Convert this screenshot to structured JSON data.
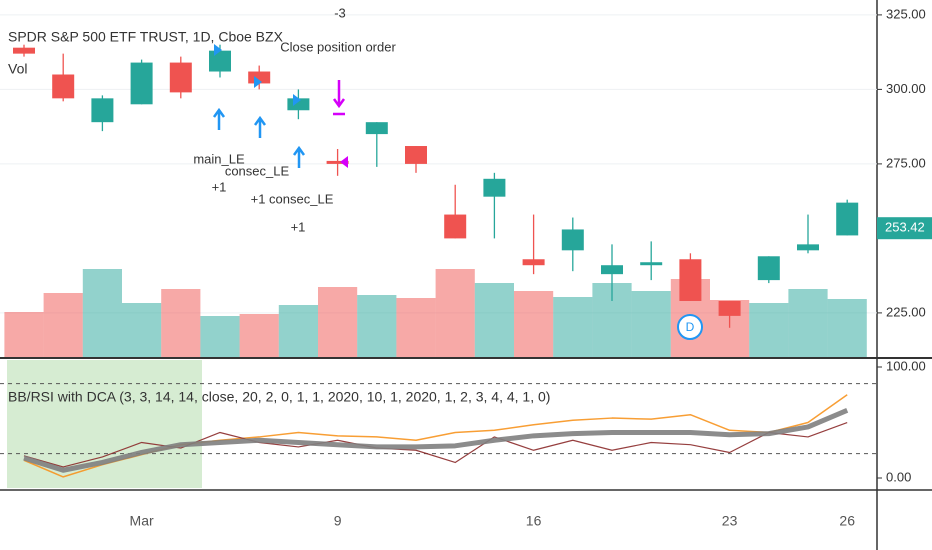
{
  "chart_data": [
    {
      "type": "candlestick",
      "title": "SPDR S&P 500 ETF TRUST, 1D, Cboe BZX",
      "subtitle": "Vol",
      "categories": [
        null,
        null,
        null,
        "Mar",
        null,
        null,
        null,
        null,
        "9",
        null,
        null,
        null,
        null,
        "16",
        null,
        null,
        null,
        null,
        "23",
        null,
        null,
        "26"
      ],
      "open": [
        314,
        305,
        289,
        295,
        309,
        306,
        306,
        293,
        276,
        285,
        281,
        258,
        264,
        243,
        246,
        238,
        241,
        243,
        229,
        236,
        246,
        251
      ],
      "high": [
        315,
        312,
        298,
        310,
        311,
        315,
        308,
        300,
        280,
        289,
        281,
        268,
        272,
        258,
        257,
        248,
        249,
        245,
        229,
        244,
        258,
        263
      ],
      "low": [
        311,
        296,
        286,
        295,
        297,
        304,
        300,
        290,
        271,
        274,
        272,
        250,
        250,
        238,
        239,
        229,
        236,
        229,
        220,
        235,
        245,
        251
      ],
      "close": [
        312,
        297,
        297,
        309,
        299,
        313,
        302,
        297,
        275,
        289,
        275,
        250,
        270,
        241,
        253,
        241,
        242,
        229,
        224,
        244,
        248,
        262
      ],
      "volume": [
        45,
        64,
        88,
        54,
        68,
        41,
        43,
        52,
        70,
        62,
        59,
        88,
        74,
        66,
        60,
        74,
        66,
        78,
        57,
        54,
        68,
        58
      ],
      "up_color": "#26a69a",
      "down_color": "#ef5350",
      "ylim": [
        210.2,
        330
      ],
      "yticks": [
        {
          "value": 225,
          "label": "225.00"
        },
        {
          "value": 275,
          "label": "275.00"
        },
        {
          "value": 300,
          "label": "300.00"
        },
        {
          "value": 325,
          "label": "325.00"
        }
      ],
      "last_price": 253.42,
      "grid": true,
      "annotations": [
        "-3",
        "Close position order",
        "main_LE",
        "+1",
        "consec_LE",
        "+1 consec_LE",
        "+1",
        "D"
      ]
    },
    {
      "type": "line",
      "title": "BB/RSI with DCA (3, 3, 14, 14, close, 20, 2, 0, 1, 1, 2020, 10, 1, 2020, 1, 2, 3, 4, 4, 1, 0)",
      "series": [
        {
          "color": "#f7931e",
          "width": 1.5,
          "values": [
            16,
            1,
            12,
            21,
            30,
            34,
            37,
            41,
            38,
            37,
            34,
            41,
            43,
            48,
            52,
            54,
            53,
            57,
            43,
            41,
            50,
            75
          ]
        },
        {
          "color": "#8b2a2a",
          "width": 1.2,
          "values": [
            20,
            10,
            19,
            32,
            27,
            41,
            32,
            28,
            34,
            27,
            25,
            14,
            37,
            25,
            34,
            25,
            32,
            30,
            23,
            41,
            37,
            50
          ]
        },
        {
          "color": "#808080",
          "width": 5,
          "values": [
            18,
            7,
            14,
            23,
            30,
            32,
            34,
            32,
            30,
            28,
            28,
            29,
            34,
            38,
            40,
            41,
            41,
            41,
            39,
            40,
            46,
            61
          ]
        }
      ],
      "ylim": [
        -10.8,
        106.3
      ],
      "yticks": [
        {
          "value": 0,
          "label": "0.00"
        },
        {
          "value": 100,
          "label": "100.00"
        }
      ],
      "hlines": [
        85,
        22
      ]
    }
  ]
}
